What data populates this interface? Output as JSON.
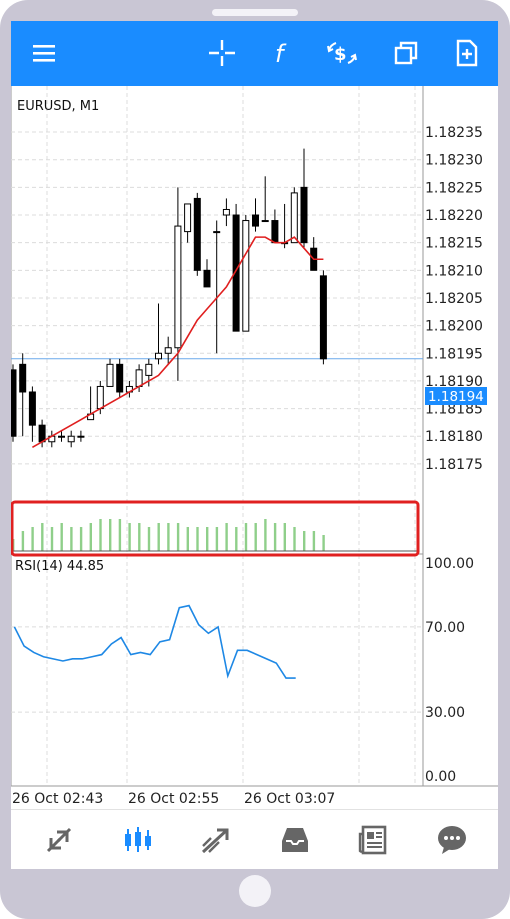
{
  "symbol_label": "EURUSD, M1",
  "current_price": "1.18194",
  "price_ticks": [
    "1.18235",
    "1.18230",
    "1.18225",
    "1.18220",
    "1.18215",
    "1.18210",
    "1.18205",
    "1.18200",
    "1.18195",
    "1.18190",
    "1.18185",
    "1.18180",
    "1.18175"
  ],
  "rsi": {
    "label": "RSI(14) 44.85",
    "ticks": [
      "100.00",
      "70.00",
      "30.00",
      "0.00"
    ]
  },
  "time_labels": [
    "26 Oct 02:43",
    "26 Oct 02:55",
    "26 Oct 03:07"
  ],
  "toolbar_icons": [
    "menu-icon",
    "crosshair-icon",
    "function-icon",
    "trade-icon",
    "windows-icon",
    "new-order-icon"
  ],
  "bottom_nav": [
    "quotes-icon",
    "chart-icon",
    "trade-icon",
    "history-icon",
    "news-icon",
    "chat-icon"
  ],
  "colors": {
    "brand": "#1a8cff",
    "ma_line": "#e01f1f",
    "rsi_line": "#1e88e5",
    "volume": "#8fcf8a",
    "highlight": "#e02020"
  },
  "chart_data": {
    "type": "candlestick",
    "title": "EURUSD, M1",
    "x_start": "26 Oct 02:43",
    "x_step_minutes": 1,
    "ylim": [
      1.18171,
      1.18237
    ],
    "candles": [
      {
        "o": 1.18192,
        "h": 1.18193,
        "l": 1.18179,
        "c": 1.1818
      },
      {
        "o": 1.18193,
        "h": 1.18195,
        "l": 1.1818,
        "c": 1.18188
      },
      {
        "o": 1.18188,
        "h": 1.18189,
        "l": 1.18179,
        "c": 1.18182
      },
      {
        "o": 1.18182,
        "h": 1.18183,
        "l": 1.18178,
        "c": 1.18179
      },
      {
        "o": 1.18179,
        "h": 1.18181,
        "l": 1.18178,
        "c": 1.1818
      },
      {
        "o": 1.1818,
        "h": 1.18181,
        "l": 1.18179,
        "c": 1.1818
      },
      {
        "o": 1.18179,
        "h": 1.18181,
        "l": 1.18178,
        "c": 1.1818
      },
      {
        "o": 1.1818,
        "h": 1.18181,
        "l": 1.18179,
        "c": 1.1818
      },
      {
        "o": 1.18183,
        "h": 1.18189,
        "l": 1.18183,
        "c": 1.18184
      },
      {
        "o": 1.18185,
        "h": 1.1819,
        "l": 1.18184,
        "c": 1.18189
      },
      {
        "o": 1.18189,
        "h": 1.18194,
        "l": 1.18189,
        "c": 1.18193
      },
      {
        "o": 1.18193,
        "h": 1.18194,
        "l": 1.18187,
        "c": 1.18188
      },
      {
        "o": 1.18188,
        "h": 1.1819,
        "l": 1.18187,
        "c": 1.18189
      },
      {
        "o": 1.18189,
        "h": 1.18193,
        "l": 1.18188,
        "c": 1.18192
      },
      {
        "o": 1.18191,
        "h": 1.18194,
        "l": 1.18189,
        "c": 1.18193
      },
      {
        "o": 1.18194,
        "h": 1.18204,
        "l": 1.18193,
        "c": 1.18195
      },
      {
        "o": 1.18195,
        "h": 1.18198,
        "l": 1.18193,
        "c": 1.18196
      },
      {
        "o": 1.18196,
        "h": 1.18225,
        "l": 1.1819,
        "c": 1.18218
      },
      {
        "o": 1.18217,
        "h": 1.18222,
        "l": 1.18215,
        "c": 1.18222
      },
      {
        "o": 1.18223,
        "h": 1.18224,
        "l": 1.18209,
        "c": 1.1821
      },
      {
        "o": 1.1821,
        "h": 1.18212,
        "l": 1.18207,
        "c": 1.18207
      },
      {
        "o": 1.18217,
        "h": 1.18219,
        "l": 1.18195,
        "c": 1.18217
      },
      {
        "o": 1.1822,
        "h": 1.18223,
        "l": 1.18218,
        "c": 1.18221
      },
      {
        "o": 1.1822,
        "h": 1.18222,
        "l": 1.18199,
        "c": 1.18199
      },
      {
        "o": 1.18199,
        "h": 1.1822,
        "l": 1.18199,
        "c": 1.18219
      },
      {
        "o": 1.1822,
        "h": 1.18223,
        "l": 1.18217,
        "c": 1.18218
      },
      {
        "o": 1.18219,
        "h": 1.18227,
        "l": 1.18219,
        "c": 1.18219
      },
      {
        "o": 1.18219,
        "h": 1.18221,
        "l": 1.18215,
        "c": 1.18215
      },
      {
        "o": 1.18215,
        "h": 1.18222,
        "l": 1.18214,
        "c": 1.18215
      },
      {
        "o": 1.18215,
        "h": 1.18225,
        "l": 1.18215,
        "c": 1.18224
      },
      {
        "o": 1.18225,
        "h": 1.18232,
        "l": 1.18214,
        "c": 1.18215
      },
      {
        "o": 1.18214,
        "h": 1.18216,
        "l": 1.1821,
        "c": 1.1821
      },
      {
        "o": 1.18209,
        "h": 1.1821,
        "l": 1.18193,
        "c": 1.18194
      }
    ],
    "ma": [
      1.18178,
      1.18179,
      1.1818,
      1.18181,
      1.18182,
      1.18183,
      1.18184,
      1.18185,
      1.18186,
      1.18187,
      1.18188,
      1.18189,
      1.1819,
      1.18191,
      1.18193,
      1.18195,
      1.18198,
      1.18201,
      1.18203,
      1.18205,
      1.18207,
      1.1821,
      1.18213,
      1.18216,
      1.18216,
      1.18215,
      1.18215,
      1.18216,
      1.18214,
      1.18212,
      1.18212
    ],
    "ma_start_index": 2,
    "volume": [
      3,
      5,
      6,
      7,
      6,
      7,
      6,
      6,
      7,
      8,
      8,
      8,
      7,
      7,
      6,
      7,
      7,
      7,
      6,
      6,
      6,
      6,
      7,
      6,
      7,
      7,
      8,
      7,
      7,
      6,
      5,
      5,
      4
    ],
    "rsi_values": [
      70,
      61,
      58,
      56,
      55,
      54,
      55,
      55,
      56,
      57,
      62,
      65,
      57,
      58,
      57,
      63,
      64,
      79,
      80,
      71,
      67,
      70,
      47,
      59,
      59,
      57,
      55,
      53,
      46,
      46
    ]
  }
}
